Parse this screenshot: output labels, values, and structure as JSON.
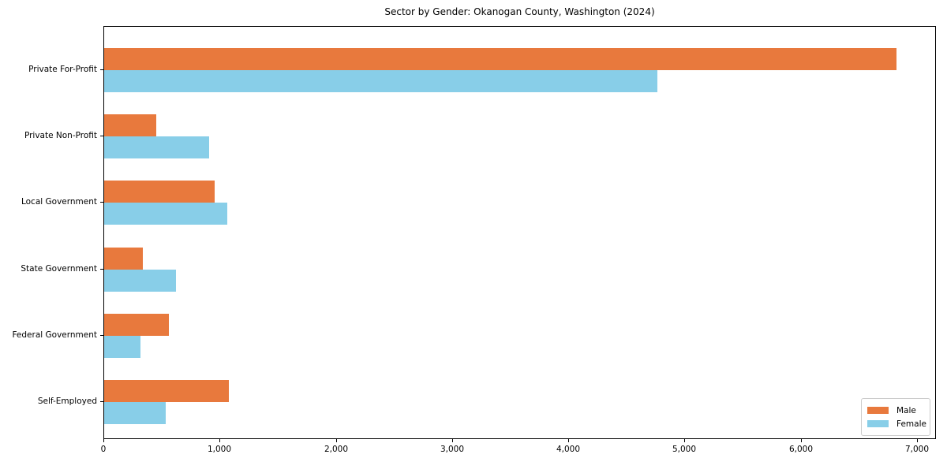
{
  "chart_data": {
    "type": "bar",
    "orientation": "horizontal",
    "title": "Sector by Gender: Okanogan County, Washington (2024)",
    "categories": [
      "Private For-Profit",
      "Private Non-Profit",
      "Local Government",
      "State Government",
      "Federal Government",
      "Self-Employed"
    ],
    "series": [
      {
        "name": "Male",
        "color": "#e8793d",
        "values": [
          6820,
          445,
          950,
          330,
          560,
          1070
        ]
      },
      {
        "name": "Female",
        "color": "#88cee8",
        "values": [
          4760,
          900,
          1060,
          620,
          315,
          530
        ]
      }
    ],
    "xlim": [
      0,
      7000
    ],
    "xticks": [
      0,
      1000,
      2000,
      3000,
      4000,
      5000,
      6000,
      7000
    ],
    "xtick_labels": [
      "0",
      "1,000",
      "2,000",
      "3,000",
      "4,000",
      "5,000",
      "6,000",
      "7,000"
    ],
    "ylabel": "",
    "xlabel": "",
    "grid": false,
    "legend": {
      "position": "lower right"
    },
    "background_color": "#ffffff",
    "spine_color": "#000000"
  }
}
